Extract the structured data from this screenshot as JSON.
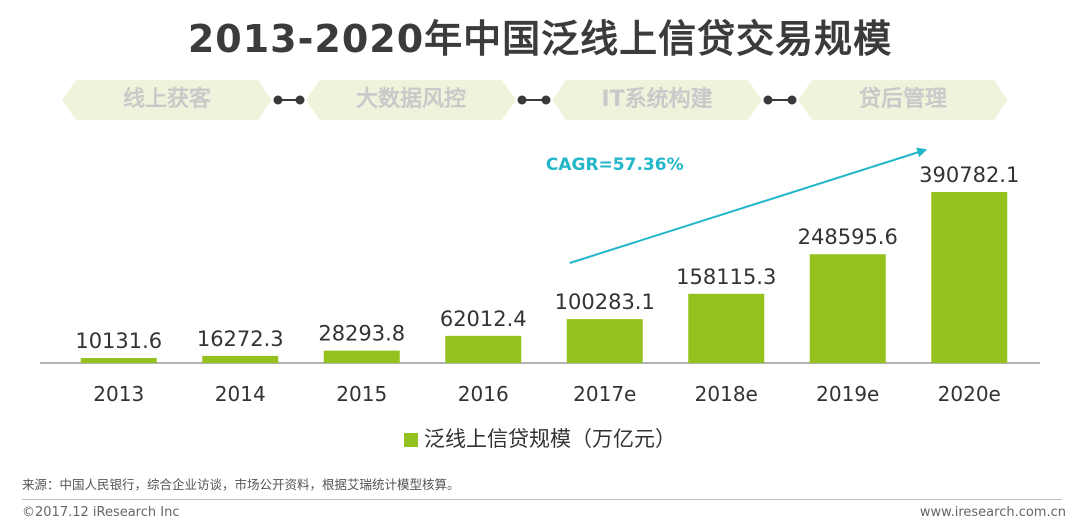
{
  "colors": {
    "bar": "#95c11f",
    "cagr": "#22b7c8",
    "flow_fill": "#eef4dc",
    "flow_text": "#c9c9c9",
    "connector": "#3a3a3a"
  },
  "flow_steps": [
    "线上获客",
    "大数据风控",
    "IT系统构建",
    "贷后管理"
  ],
  "chart_data": {
    "type": "bar",
    "title": "2013-2020年中国泛线上信贷交易规模",
    "categories": [
      "2013",
      "2014",
      "2015",
      "2016",
      "2017e",
      "2018e",
      "2019e",
      "2020e"
    ],
    "series": [
      {
        "name": "泛线上信贷规模（万亿元）",
        "values": [
          10131.6,
          16272.3,
          28293.8,
          62012.4,
          100283.1,
          158115.3,
          248595.6,
          390782.1
        ]
      }
    ],
    "data_labels": [
      "10131.6",
      "16272.3",
      "28293.8",
      "62012.4",
      "100283.1",
      "158115.3",
      "248595.6",
      "390782.1"
    ],
    "annotation": "CAGR=57.36%",
    "legend_position": "bottom-center",
    "grid": false,
    "ylim": [
      0,
      390782.1
    ]
  },
  "footer": {
    "source": "来源：中国人民银行，综合企业访谈，市场公开资料，根据艾瑞统计模型核算。",
    "copyright": "©2017.12 iResearch Inc",
    "website": "www.iresearch.com.cn"
  }
}
